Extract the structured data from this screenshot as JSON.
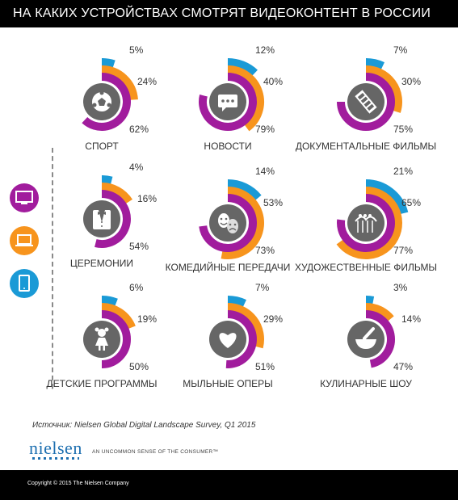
{
  "title": "НА КАКИХ УСТРОЙСТВАХ СМОТРЯТ ВИДЕОКОНТЕНТ В РОССИИ",
  "colors": {
    "tv": "#a11c9d",
    "laptop": "#f7941d",
    "tablet": "#1a9ad6",
    "track": "#e6e6e6",
    "icon_bg": "#666666"
  },
  "legend": [
    {
      "device": "tv",
      "icon": "tv-icon"
    },
    {
      "device": "laptop",
      "icon": "laptop-icon"
    },
    {
      "device": "tablet",
      "icon": "tablet-icon"
    }
  ],
  "chart_data": {
    "type": "radial-bar",
    "title": "НА КАКИХ УСТРОЙСТВАХ СМОТРЯТ ВИДЕОКОНТЕНТ В РОССИИ",
    "series": [
      {
        "device": "tablet",
        "color": "#1a9ad6"
      },
      {
        "device": "laptop",
        "color": "#f7941d"
      },
      {
        "device": "tv",
        "color": "#a11c9d"
      }
    ],
    "categories": [
      {
        "name": "СПОРТ",
        "icon": "soccer-ball-icon",
        "tablet": 5,
        "laptop": 24,
        "tv": 62
      },
      {
        "name": "НОВОСТИ",
        "icon": "speech-bubble-icon",
        "tablet": 12,
        "laptop": 40,
        "tv": 79
      },
      {
        "name": "ДОКУМЕНТАЛЬНЫЕ ФИЛЬМЫ",
        "icon": "film-strip-icon",
        "tablet": 7,
        "laptop": 30,
        "tv": 75
      },
      {
        "name": "ЦЕРЕМОНИИ",
        "icon": "tuxedo-icon",
        "tablet": 4,
        "laptop": 16,
        "tv": 54
      },
      {
        "name": "КОМЕДИЙНЫЕ ПЕРЕДАЧИ",
        "icon": "theater-masks-icon",
        "tablet": 14,
        "laptop": 53,
        "tv": 73
      },
      {
        "name": "ХУДОЖЕСТВЕННЫЕ ФИЛЬМЫ",
        "icon": "roller-coaster-icon",
        "tablet": 21,
        "laptop": 65,
        "tv": 77
      },
      {
        "name": "ДЕТСКИЕ ПРОГРАММЫ",
        "icon": "child-icon",
        "tablet": 6,
        "laptop": 19,
        "tv": 50
      },
      {
        "name": "МЫЛЬНЫЕ ОПЕРЫ",
        "icon": "heart-icon",
        "tablet": 7,
        "laptop": 29,
        "tv": 51
      },
      {
        "name": "КУЛИНАРНЫЕ ШОУ",
        "icon": "mortar-pestle-icon",
        "tablet": 3,
        "laptop": 14,
        "tv": 47
      }
    ]
  },
  "source": "Источник: Nielsen Global Digital Landscape Survey, Q1 2015",
  "brand": {
    "name": "nielsen",
    "tagline": "AN UNCOMMON SENSE OF THE CONSUMER™"
  },
  "copyright": "Copyright © 2015 The Nielsen Company"
}
